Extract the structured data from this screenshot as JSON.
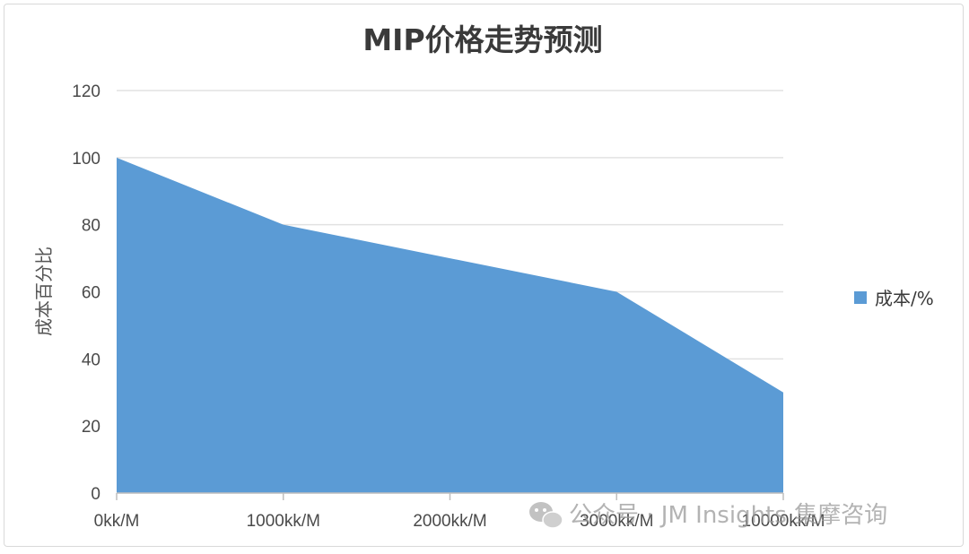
{
  "chart_data": {
    "type": "area",
    "title": "MIP价格走势预测",
    "xlabel": "",
    "ylabel": "成本百分比",
    "x": [
      "0kk/M",
      "1000kk/M",
      "2000kk/M",
      "3000kk/M",
      "10000kk/M"
    ],
    "series": [
      {
        "name": "成本/%",
        "values": [
          100,
          80,
          70,
          60,
          30
        ],
        "color": "#5b9bd5"
      }
    ],
    "ylim": [
      0,
      120
    ],
    "yticks": [
      "0",
      "20",
      "40",
      "60",
      "80",
      "100",
      "120"
    ],
    "grid": true,
    "legend_position": "right"
  },
  "watermark": {
    "icon": "wechat-icon",
    "text": "公众号 · JM Insights 集摩咨询"
  }
}
